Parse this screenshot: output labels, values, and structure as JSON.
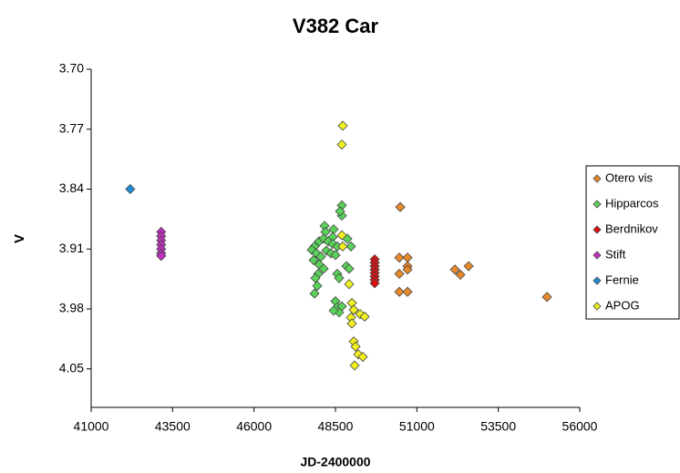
{
  "chart_data": {
    "type": "scatter",
    "title": "V382 Car",
    "x_label": "JD-2400000",
    "y_label": "V",
    "xlim": [
      41000,
      56000
    ],
    "xticks": [
      41000,
      43500,
      46000,
      48500,
      51000,
      53500,
      56000
    ],
    "ylim": [
      3.7,
      4.095
    ],
    "y_inverted": true,
    "yticks": [
      {
        "value": 3.7,
        "label": "3.70"
      },
      {
        "value": 3.77,
        "label": "3.77"
      },
      {
        "value": 3.84,
        "label": "3.84"
      },
      {
        "value": 3.91,
        "label": "3.91"
      },
      {
        "value": 3.98,
        "label": "3.98"
      },
      {
        "value": 4.05,
        "label": "4.05"
      }
    ],
    "grid": false,
    "legend": "right",
    "series": [
      {
        "name": "Otero vis",
        "color": "#e8892b",
        "x": [
          50490,
          50461,
          50713,
          50713,
          50461,
          50713,
          50461,
          50713,
          52168,
          52336,
          52588,
          54995
        ],
        "values": [
          3.861,
          3.92,
          3.92,
          3.93,
          3.939,
          3.934,
          3.96,
          3.96,
          3.934,
          3.94,
          3.93,
          3.966
        ]
      },
      {
        "name": "Hipparcos",
        "color": "#5ad25a",
        "x": [
          48697,
          48697,
          48642,
          48165,
          48193,
          48445,
          48417,
          47858,
          47998,
          48138,
          48277,
          48417,
          48557,
          47774,
          47914,
          48053,
          48221,
          48361,
          48501,
          47830,
          47998,
          48138,
          47970,
          47886,
          47942,
          47858,
          48557,
          48613,
          48837,
          48921,
          48865,
          48977,
          48501,
          48557,
          48697,
          48613,
          48445
        ],
        "values": [
          3.859,
          3.871,
          3.866,
          3.883,
          3.89,
          3.887,
          3.896,
          3.907,
          3.901,
          3.898,
          3.901,
          3.904,
          3.907,
          3.911,
          3.915,
          3.919,
          3.912,
          3.915,
          3.917,
          3.923,
          3.928,
          3.933,
          3.939,
          3.944,
          3.953,
          3.962,
          3.939,
          3.944,
          3.93,
          3.933,
          3.898,
          3.907,
          3.971,
          3.978,
          3.977,
          3.984,
          3.982
        ]
      },
      {
        "name": "Berdnikov",
        "color": "#e01010",
        "x": [
          49705,
          49705,
          49705,
          49705,
          49705,
          49705,
          49705,
          49705
        ],
        "values": [
          3.922,
          3.926,
          3.93,
          3.934,
          3.938,
          3.942,
          3.946,
          3.95
        ]
      },
      {
        "name": "Stift",
        "color": "#c030c0",
        "x": [
          43150,
          43150,
          43150,
          43150,
          43150,
          43150,
          43150
        ],
        "values": [
          3.89,
          3.895,
          3.9,
          3.905,
          3.91,
          3.915,
          3.918
        ]
      },
      {
        "name": "Fernie",
        "color": "#2090d0",
        "x": [
          42200
        ],
        "values": [
          3.84
        ]
      },
      {
        "name": "APOG",
        "color": "#f0f020",
        "x": [
          48725,
          48697,
          48697,
          48725,
          48921,
          49005,
          49061,
          48977,
          49257,
          49397,
          49005,
          49061,
          49117,
          49201,
          49341,
          49089
        ],
        "values": [
          3.766,
          3.788,
          3.894,
          3.907,
          3.951,
          3.973,
          3.981,
          3.99,
          3.986,
          3.989,
          3.997,
          4.018,
          4.024,
          4.033,
          4.036,
          4.046
        ]
      }
    ]
  }
}
